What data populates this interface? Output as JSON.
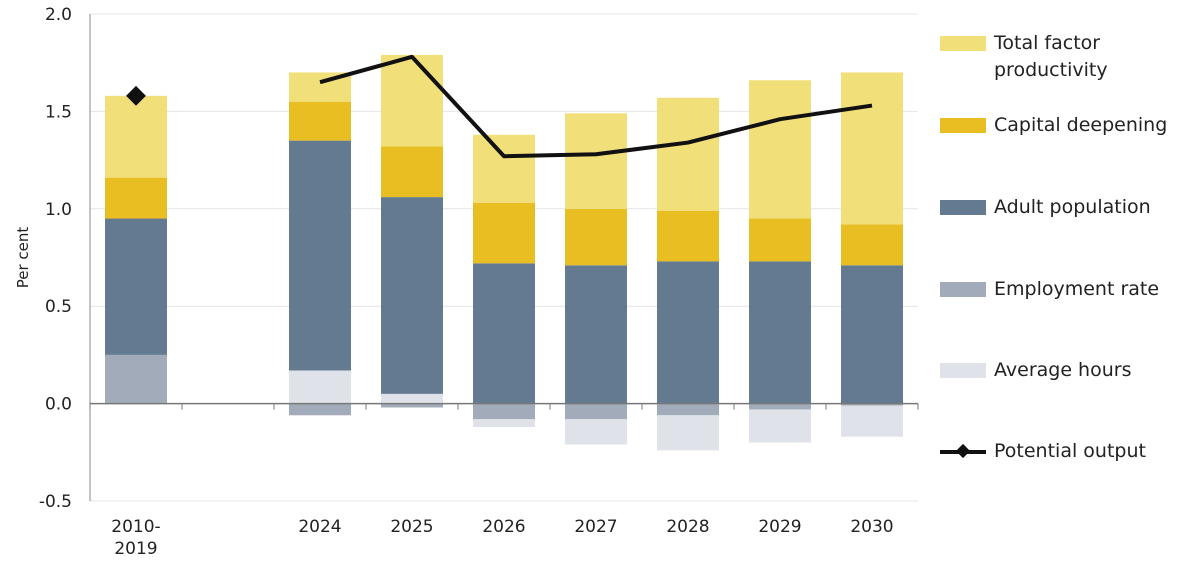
{
  "chart_data": {
    "type": "bar",
    "stacked": true,
    "ylabel": "Per cent",
    "ylim": [
      -0.5,
      2.0
    ],
    "yticks": [
      "2.0",
      "1.5",
      "1.0",
      "0.5",
      "0.0",
      "-0.5"
    ],
    "ytick_values": [
      2.0,
      1.5,
      1.0,
      0.5,
      0.0,
      -0.5
    ],
    "grid": true,
    "legend_position": "right",
    "categories": [
      "2010-\n2019",
      "",
      "2024",
      "2025",
      "2026",
      "2027",
      "2028",
      "2029",
      "2030"
    ],
    "category_lines": [
      [
        "2010-",
        "2019"
      ],
      [
        ""
      ],
      [
        "2024"
      ],
      [
        "2025"
      ],
      [
        "2026"
      ],
      [
        "2027"
      ],
      [
        "2028"
      ],
      [
        "2029"
      ],
      [
        "2030"
      ]
    ],
    "series": [
      {
        "name": "Employment rate",
        "color": "#a2abb9",
        "values": [
          0.25,
          null,
          -0.06,
          -0.02,
          -0.08,
          -0.08,
          -0.06,
          -0.03,
          -0.01
        ]
      },
      {
        "name": "Average hours",
        "color": "#dfe2e9",
        "values": [
          0,
          null,
          0.17,
          0.05,
          -0.04,
          -0.13,
          -0.18,
          -0.17,
          -0.16
        ]
      },
      {
        "name": "Adult population",
        "color": "#637a91",
        "values": [
          0.7,
          null,
          1.18,
          1.01,
          0.72,
          0.71,
          0.73,
          0.73,
          0.71
        ]
      },
      {
        "name": "Capital deepening",
        "color": "#e8be22",
        "values": [
          0.21,
          null,
          0.2,
          0.26,
          0.31,
          0.29,
          0.26,
          0.22,
          0.21
        ]
      },
      {
        "name": "Total factor productivity",
        "color": "#f1df7a",
        "values": [
          0.42,
          null,
          0.15,
          0.47,
          0.35,
          0.49,
          0.58,
          0.71,
          0.78
        ]
      }
    ],
    "line": {
      "name": "Potential output",
      "color": "#111111",
      "values": [
        1.58,
        null,
        1.65,
        1.78,
        1.27,
        1.28,
        1.34,
        1.46,
        1.53
      ],
      "marker_only_categories": [
        "2010-\n2019"
      ]
    },
    "legend": [
      {
        "label": "Total factor productivity",
        "lines": [
          "Total factor",
          "productivity"
        ],
        "color": "#f1df7a"
      },
      {
        "label": "Capital deepening",
        "lines": [
          "Capital deepening"
        ],
        "color": "#e8be22"
      },
      {
        "label": "Adult population",
        "lines": [
          "Adult population"
        ],
        "color": "#637a91"
      },
      {
        "label": "Employment rate",
        "lines": [
          "Employment rate"
        ],
        "color": "#a2abb9"
      },
      {
        "label": "Average hours",
        "lines": [
          "Average hours"
        ],
        "color": "#dfe2e9"
      },
      {
        "label": "Potential output",
        "lines": [
          "Potential output"
        ],
        "color": "#111111"
      }
    ]
  }
}
